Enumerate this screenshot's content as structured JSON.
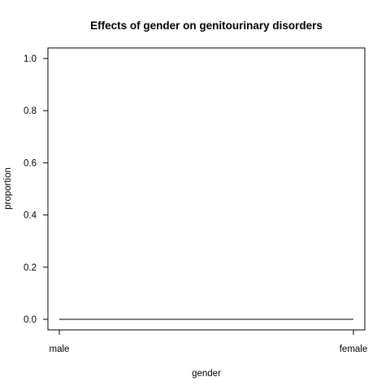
{
  "chart_data": {
    "type": "line",
    "title": "Effects of gender on genitourinary disorders",
    "xlabel": "gender",
    "ylabel": "proportion",
    "categories": [
      "male",
      "female"
    ],
    "series": [
      {
        "values": [
          0.0,
          0.0
        ]
      }
    ],
    "ylim": [
      0,
      1
    ],
    "yticks": [
      0.0,
      0.2,
      0.4,
      0.6,
      0.8,
      1.0
    ],
    "ytick_labels": [
      "0.0",
      "0.2",
      "0.4",
      "0.6",
      "0.8",
      "1.0"
    ],
    "grid": false,
    "legend": "none",
    "colors": {
      "line": "#000000",
      "axis": "#000000",
      "background": "#ffffff"
    }
  }
}
